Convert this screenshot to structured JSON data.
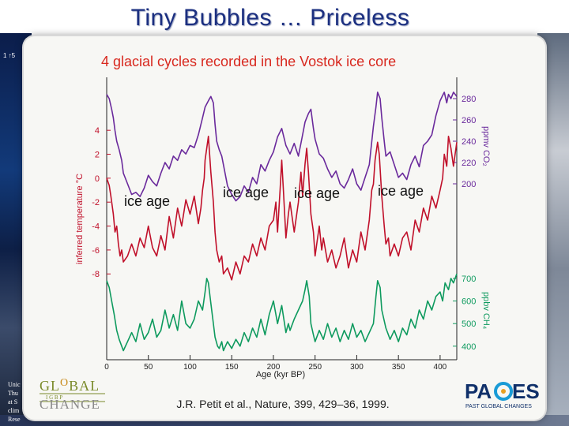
{
  "slide": {
    "title": "Tiny Bubbles … Priceless",
    "citation": "J.R. Petit et al., Nature, 399, 429–36, 1999.",
    "side_note_lines": [
      "Unic",
      "Thu",
      "at S",
      "clim",
      "Rese"
    ],
    "corner_label": "1 ↑5"
  },
  "logos": {
    "global_change": {
      "line1": "GL",
      "o_letter": "O",
      "line1b": "BAL",
      "middle": "I   G   B   P",
      "line2": "CHANGE"
    },
    "pages": {
      "name_left": "PA",
      "name_right": "ES",
      "subtitle": "PAST GLOBAL CHANGES"
    }
  },
  "colors": {
    "co2": "#6a2a9c",
    "temperature": "#c0102a",
    "ch4": "#0e9a5e",
    "title_red": "#d8281e",
    "slide_title": "#1b2f80"
  },
  "chart_data": {
    "type": "line",
    "title": "4 glacial cycles recorded in the Vostok ice core",
    "xlabel": "Age (kyr BP)",
    "xlim": [
      0,
      420
    ],
    "xticks": [
      0,
      50,
      100,
      150,
      200,
      250,
      300,
      350,
      400
    ],
    "annotations": [
      "ice age",
      "ice age",
      "ice age",
      "ice age"
    ],
    "axes": {
      "co2": {
        "label": "ppmv CO₂",
        "ticks": [
          280,
          260,
          240,
          220,
          200
        ],
        "side": "right",
        "range": [
          180,
          300
        ]
      },
      "temperature": {
        "label": "inferred temperature °C",
        "ticks": [
          4,
          2,
          0,
          -2,
          -4,
          -6,
          -8
        ],
        "side": "left",
        "range": [
          -9.5,
          5
        ]
      },
      "ch4": {
        "label": "ppbv CH₄",
        "ticks": [
          700,
          600,
          500,
          400
        ],
        "side": "right",
        "range": [
          340,
          780
        ]
      }
    },
    "series": [
      {
        "name": "CO₂",
        "x": [
          0,
          3,
          6,
          8,
          10,
          12,
          15,
          18,
          20,
          25,
          30,
          35,
          40,
          45,
          50,
          55,
          60,
          65,
          70,
          75,
          80,
          85,
          90,
          95,
          100,
          105,
          110,
          115,
          118,
          122,
          125,
          128,
          130,
          132,
          135,
          138,
          140,
          145,
          150,
          155,
          160,
          165,
          170,
          175,
          180,
          185,
          190,
          195,
          200,
          205,
          210,
          215,
          220,
          225,
          230,
          235,
          238,
          240,
          242,
          245,
          248,
          250,
          255,
          260,
          265,
          270,
          275,
          280,
          285,
          290,
          295,
          300,
          305,
          310,
          315,
          320,
          323,
          325,
          328,
          330,
          333,
          335,
          340,
          345,
          350,
          355,
          360,
          365,
          370,
          375,
          380,
          385,
          390,
          395,
          400,
          403,
          405,
          408,
          410,
          413,
          416,
          420
        ],
        "y": [
          284,
          280,
          270,
          262,
          250,
          240,
          232,
          222,
          210,
          200,
          190,
          192,
          188,
          196,
          208,
          202,
          198,
          210,
          220,
          214,
          226,
          222,
          232,
          228,
          236,
          234,
          246,
          262,
          272,
          278,
          282,
          276,
          256,
          240,
          232,
          226,
          218,
          198,
          190,
          184,
          188,
          198,
          192,
          206,
          200,
          218,
          212,
          222,
          230,
          244,
          252,
          236,
          228,
          238,
          226,
          246,
          258,
          262,
          266,
          270,
          252,
          242,
          228,
          224,
          214,
          206,
          212,
          200,
          196,
          204,
          214,
          200,
          194,
          206,
          218,
          254,
          272,
          286,
          280,
          262,
          240,
          226,
          230,
          218,
          206,
          210,
          204,
          218,
          226,
          216,
          236,
          240,
          246,
          264,
          278,
          283,
          286,
          276,
          284,
          280,
          286,
          282
        ]
      },
      {
        "name": "temperature",
        "x": [
          0,
          3,
          5,
          8,
          10,
          12,
          14,
          16,
          18,
          20,
          25,
          30,
          35,
          40,
          45,
          50,
          55,
          60,
          65,
          70,
          75,
          80,
          85,
          90,
          95,
          100,
          105,
          110,
          113,
          115,
          117,
          118,
          120,
          122,
          125,
          128,
          130,
          132,
          135,
          138,
          140,
          145,
          150,
          155,
          160,
          165,
          170,
          175,
          180,
          185,
          190,
          195,
          200,
          203,
          205,
          208,
          210,
          212,
          215,
          218,
          220,
          225,
          230,
          233,
          235,
          238,
          240,
          242,
          245,
          248,
          250,
          252,
          255,
          258,
          260,
          265,
          270,
          275,
          280,
          285,
          290,
          295,
          300,
          305,
          310,
          315,
          318,
          320,
          322,
          325,
          327,
          330,
          333,
          335,
          338,
          340,
          345,
          350,
          355,
          360,
          365,
          370,
          375,
          380,
          385,
          390,
          395,
          400,
          403,
          405,
          408,
          410,
          413,
          416,
          420
        ],
        "y": [
          0,
          -0.6,
          -1.5,
          -3,
          -4.5,
          -4,
          -5.5,
          -6.5,
          -6,
          -7,
          -6.5,
          -5.5,
          -6.5,
          -5,
          -5.8,
          -4,
          -5.8,
          -6.5,
          -4.8,
          -6,
          -3.2,
          -5,
          -2.5,
          -4,
          -1.8,
          -3,
          -1.5,
          -3.8,
          -2.5,
          -1,
          0,
          1.5,
          2.5,
          3.5,
          0.5,
          -2,
          -4.5,
          -6,
          -7,
          -6.5,
          -8,
          -7.5,
          -8.5,
          -7,
          -8,
          -6.5,
          -7,
          -5.5,
          -6.5,
          -5,
          -6,
          -4,
          -3.5,
          -2,
          -4.5,
          -1,
          1.5,
          -1,
          -5,
          -3,
          -2,
          -4.5,
          -2,
          0.5,
          -1.5,
          1.2,
          2.5,
          0.5,
          -3,
          -4.5,
          -6.5,
          -5.5,
          -4,
          -6,
          -5,
          -7,
          -6,
          -7.5,
          -6.5,
          -5,
          -7.5,
          -6,
          -7,
          -4.5,
          -6,
          -3.5,
          -1,
          -0.5,
          1.5,
          3,
          2,
          -1.5,
          -4,
          -5.5,
          -5,
          -6.5,
          -5.5,
          -6.5,
          -5,
          -4.5,
          -6,
          -3.5,
          -4.5,
          -2.5,
          -3.5,
          -1.5,
          -2.5,
          -1,
          0,
          2,
          1,
          3.5,
          2.5,
          1,
          3
        ]
      },
      {
        "name": "CH₄",
        "x": [
          0,
          3,
          6,
          9,
          12,
          15,
          18,
          20,
          25,
          30,
          35,
          40,
          45,
          50,
          55,
          60,
          65,
          70,
          75,
          80,
          85,
          90,
          95,
          100,
          105,
          110,
          115,
          118,
          120,
          122,
          125,
          128,
          130,
          133,
          135,
          138,
          140,
          145,
          150,
          155,
          160,
          165,
          170,
          175,
          180,
          185,
          190,
          195,
          200,
          205,
          210,
          215,
          218,
          220,
          225,
          230,
          235,
          238,
          240,
          243,
          245,
          248,
          250,
          255,
          260,
          265,
          270,
          275,
          280,
          285,
          290,
          295,
          300,
          305,
          310,
          315,
          320,
          323,
          325,
          328,
          330,
          335,
          340,
          345,
          350,
          355,
          360,
          365,
          370,
          375,
          380,
          385,
          390,
          395,
          400,
          403,
          406,
          410,
          413,
          416,
          420
        ],
        "y": [
          690,
          660,
          600,
          540,
          470,
          430,
          400,
          380,
          420,
          460,
          420,
          500,
          430,
          460,
          520,
          440,
          470,
          560,
          480,
          540,
          470,
          600,
          500,
          480,
          520,
          600,
          560,
          640,
          700,
          680,
          590,
          500,
          440,
          400,
          390,
          420,
          380,
          420,
          390,
          430,
          400,
          460,
          420,
          480,
          440,
          520,
          450,
          540,
          600,
          500,
          580,
          460,
          500,
          470,
          520,
          560,
          600,
          650,
          690,
          620,
          500,
          450,
          420,
          470,
          430,
          500,
          440,
          480,
          420,
          470,
          430,
          500,
          440,
          470,
          420,
          460,
          500,
          620,
          690,
          660,
          560,
          480,
          430,
          470,
          420,
          480,
          450,
          520,
          480,
          560,
          520,
          600,
          560,
          620,
          640,
          600,
          680,
          650,
          700,
          680,
          720
        ]
      }
    ]
  }
}
